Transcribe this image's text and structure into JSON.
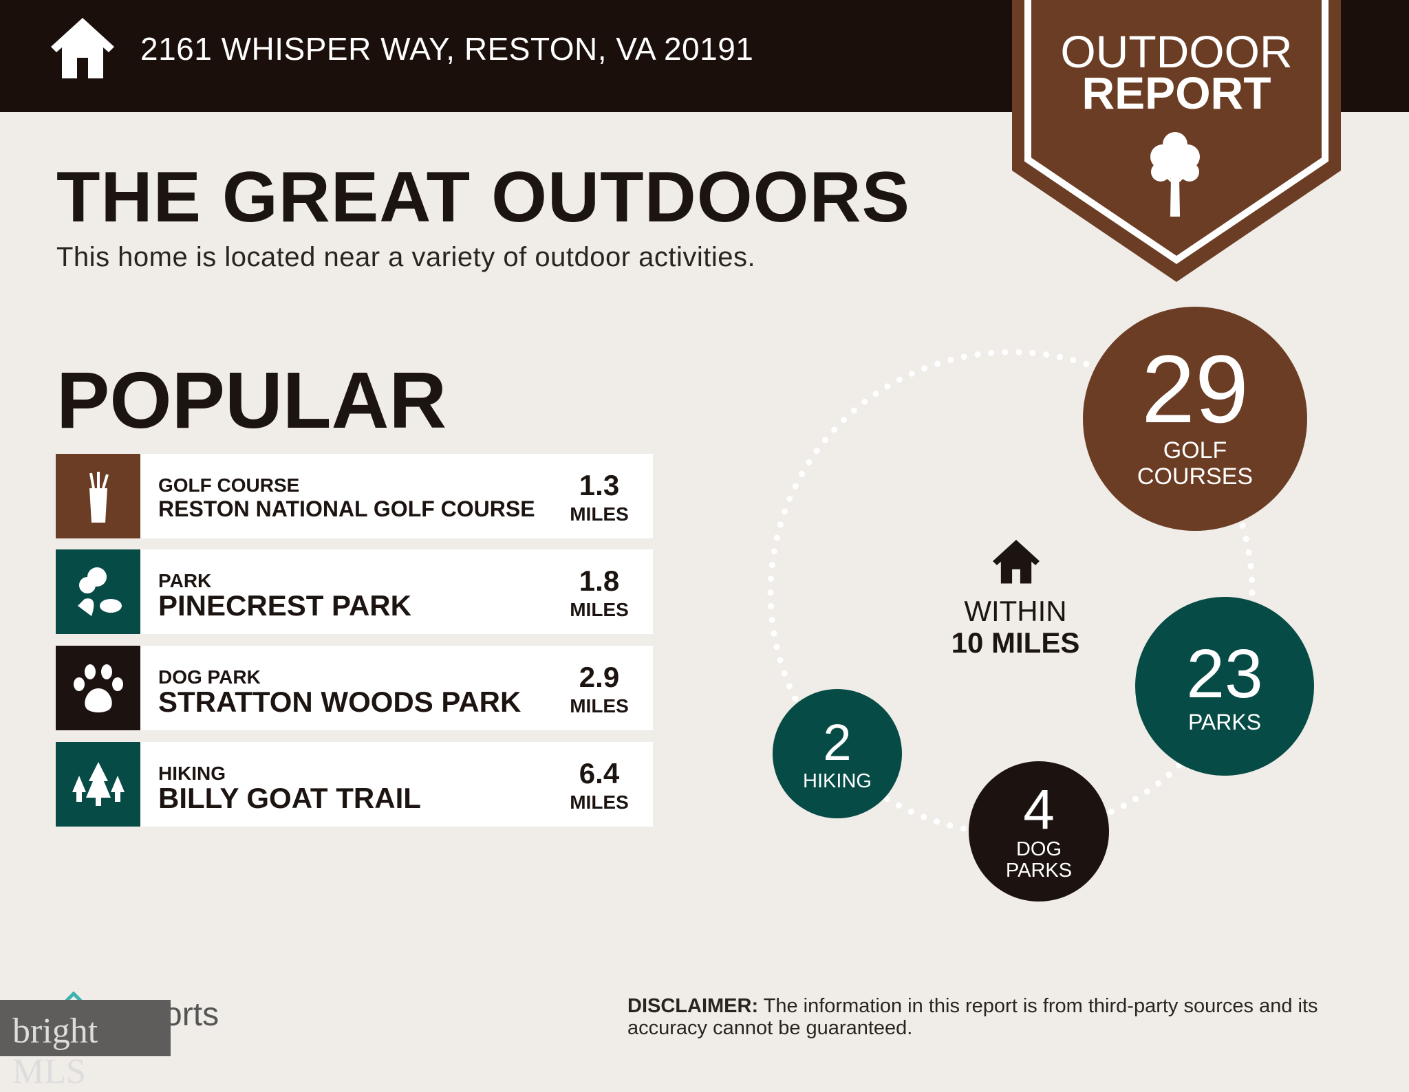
{
  "header": {
    "address": "2161 WHISPER WAY, RESTON, VA 20191",
    "home_icon": "house-icon"
  },
  "badge": {
    "line1": "OUTDOOR",
    "line2": "REPORT",
    "icon": "tree-icon",
    "color": "#6b3d24"
  },
  "title": "THE GREAT OUTDOORS",
  "subtitle": "This home is located near a variety of outdoor activities.",
  "popular": {
    "heading": "POPULAR",
    "items": [
      {
        "category": "GOLF COURSE",
        "name": "RESTON NATIONAL GOLF COURSE",
        "distance": "1.3",
        "unit": "MILES",
        "icon": "golf-bag-icon",
        "color": "#6b3d24"
      },
      {
        "category": "PARK",
        "name": "PINECREST PARK",
        "distance": "1.8",
        "unit": "MILES",
        "icon": "park-icon",
        "color": "#064b46"
      },
      {
        "category": "DOG PARK",
        "name": "STRATTON WOODS PARK",
        "distance": "2.9",
        "unit": "MILES",
        "icon": "paw-icon",
        "color": "#1c1210"
      },
      {
        "category": "HIKING",
        "name": "BILLY GOAT TRAIL",
        "distance": "6.4",
        "unit": "MILES",
        "icon": "pine-trees-icon",
        "color": "#064b46"
      }
    ]
  },
  "summary": {
    "within_line1": "WITHIN",
    "within_line2": "10 MILES",
    "golf": {
      "count": "29",
      "label1": "GOLF",
      "label2": "COURSES"
    },
    "parks": {
      "count": "23",
      "label": "PARKS"
    },
    "dog": {
      "count": "4",
      "label1": "DOG",
      "label2": "PARKS"
    },
    "hiking": {
      "count": "2",
      "label": "HIKING"
    }
  },
  "footer": {
    "disclaimer_bold": "DISCLAIMER:",
    "disclaimer": " The information in this report is from third-party sources and its accuracy cannot be guaranteed.",
    "reports_logo": "Reports",
    "bright_logo": "bright MLS"
  }
}
